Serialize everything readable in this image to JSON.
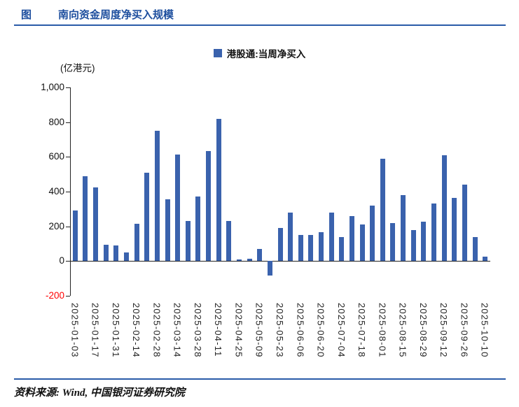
{
  "header": {
    "figure_label": "图",
    "title": "南向资金周度净买入规模"
  },
  "colors": {
    "accent_blue": "#1D4E9E",
    "bar_blue": "#3A62AD",
    "negative_tick_red": "#FF0000"
  },
  "chart_data": {
    "type": "bar",
    "title": "南向资金周度净买入规模",
    "unit_label": "(亿港元)",
    "legend": [
      "港股通:当周净买入"
    ],
    "legend_position": "top-center",
    "grid": false,
    "bar_color": "#3A62AD",
    "ylim": [
      -200,
      1000
    ],
    "ytick_values": [
      1000,
      800,
      600,
      400,
      200,
      0,
      -200
    ],
    "ytick_labels": [
      "1,000",
      "800",
      "600",
      "400",
      "200",
      "0",
      "-200"
    ],
    "xtick_every": 2,
    "x": [
      "2025-01-03",
      "2025-01-10",
      "2025-01-17",
      "2025-01-24",
      "2025-01-31",
      "2025-02-07",
      "2025-02-14",
      "2025-02-21",
      "2025-02-28",
      "2025-03-07",
      "2025-03-14",
      "2025-03-21",
      "2025-03-28",
      "2025-04-04",
      "2025-04-11",
      "2025-04-18",
      "2025-04-25",
      "2025-05-02",
      "2025-05-09",
      "2025-05-16",
      "2025-05-23",
      "2025-05-30",
      "2025-06-06",
      "2025-06-13",
      "2025-06-20",
      "2025-06-27",
      "2025-07-04",
      "2025-07-11",
      "2025-07-18",
      "2025-07-25",
      "2025-08-01",
      "2025-08-08",
      "2025-08-15",
      "2025-08-22",
      "2025-08-29",
      "2025-09-05",
      "2025-09-12",
      "2025-09-19",
      "2025-09-26",
      "2025-10-03",
      "2025-10-10"
    ],
    "values": [
      290,
      490,
      425,
      95,
      90,
      50,
      215,
      510,
      750,
      355,
      615,
      230,
      370,
      635,
      820,
      230,
      10,
      15,
      70,
      -85,
      190,
      280,
      150,
      150,
      165,
      280,
      140,
      260,
      210,
      320,
      590,
      220,
      380,
      180,
      225,
      330,
      610,
      365,
      440,
      140,
      25
    ]
  },
  "footer": {
    "source": "资料来源: Wind, 中国银河证券研究院"
  }
}
